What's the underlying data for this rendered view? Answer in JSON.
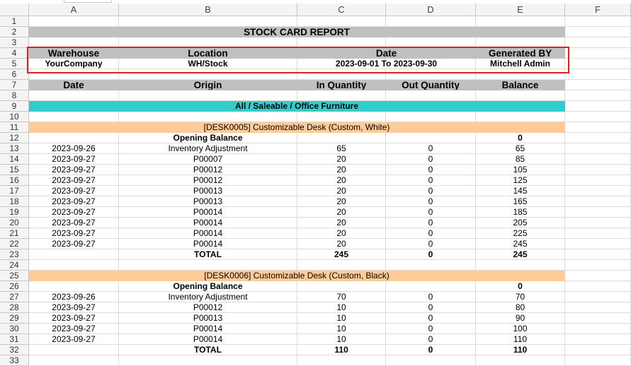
{
  "columns": [
    "A",
    "B",
    "C",
    "D",
    "E",
    "F"
  ],
  "row_numbers": [
    "1",
    "2",
    "3",
    "4",
    "5",
    "6",
    "7",
    "8",
    "9",
    "10",
    "11",
    "12",
    "13",
    "14",
    "15",
    "16",
    "17",
    "18",
    "19",
    "20",
    "21",
    "22",
    "23",
    "24",
    "25",
    "26",
    "27",
    "28",
    "29",
    "30",
    "31",
    "32",
    "33"
  ],
  "report": {
    "title": "STOCK CARD REPORT",
    "info_headers": {
      "warehouse": "Warehouse",
      "location": "Location",
      "date": "Date",
      "generated_by": "Generated BY"
    },
    "info_values": {
      "warehouse": "YourCompany",
      "location": "WH/Stock",
      "date": "2023-09-01 To 2023-09-30",
      "generated_by": "Mitchell Admin"
    },
    "table_headers": {
      "date": "Date",
      "origin": "Origin",
      "in_qty": "In Quantity",
      "out_qty": "Out Quantity",
      "balance": "Balance"
    },
    "category": "All / Saleable / Office Furniture",
    "opening_label": "Opening Balance",
    "total_label": "TOTAL",
    "products": [
      {
        "name": "[DESK0005] Customizable Desk (Custom, White)",
        "opening_balance": "0",
        "rows": [
          {
            "date": "2023-09-26",
            "origin": "Inventory Adjustment",
            "in": "65",
            "out": "0",
            "balance": "65"
          },
          {
            "date": "2023-09-27",
            "origin": "P00007",
            "in": "20",
            "out": "0",
            "balance": "85"
          },
          {
            "date": "2023-09-27",
            "origin": "P00012",
            "in": "20",
            "out": "0",
            "balance": "105"
          },
          {
            "date": "2023-09-27",
            "origin": "P00012",
            "in": "20",
            "out": "0",
            "balance": "125"
          },
          {
            "date": "2023-09-27",
            "origin": "P00013",
            "in": "20",
            "out": "0",
            "balance": "145"
          },
          {
            "date": "2023-09-27",
            "origin": "P00013",
            "in": "20",
            "out": "0",
            "balance": "165"
          },
          {
            "date": "2023-09-27",
            "origin": "P00014",
            "in": "20",
            "out": "0",
            "balance": "185"
          },
          {
            "date": "2023-09-27",
            "origin": "P00014",
            "in": "20",
            "out": "0",
            "balance": "205"
          },
          {
            "date": "2023-09-27",
            "origin": "P00014",
            "in": "20",
            "out": "0",
            "balance": "225"
          },
          {
            "date": "2023-09-27",
            "origin": "P00014",
            "in": "20",
            "out": "0",
            "balance": "245"
          }
        ],
        "total": {
          "in": "245",
          "out": "0",
          "balance": "245"
        }
      },
      {
        "name": "[DESK0006] Customizable Desk (Custom, Black)",
        "opening_balance": "0",
        "rows": [
          {
            "date": "2023-09-26",
            "origin": "Inventory Adjustment",
            "in": "70",
            "out": "0",
            "balance": "70"
          },
          {
            "date": "2023-09-27",
            "origin": "P00012",
            "in": "10",
            "out": "0",
            "balance": "80"
          },
          {
            "date": "2023-09-27",
            "origin": "P00013",
            "in": "10",
            "out": "0",
            "balance": "90"
          },
          {
            "date": "2023-09-27",
            "origin": "P00014",
            "in": "10",
            "out": "0",
            "balance": "100"
          },
          {
            "date": "2023-09-27",
            "origin": "P00014",
            "in": "10",
            "out": "0",
            "balance": "110"
          }
        ],
        "total": {
          "in": "110",
          "out": "0",
          "balance": "110"
        }
      }
    ]
  },
  "colors": {
    "header_gray": "#c0c0c0",
    "category_teal": "#33cccc",
    "product_peach": "#ffcc99",
    "highlight_red": "#e02020"
  }
}
